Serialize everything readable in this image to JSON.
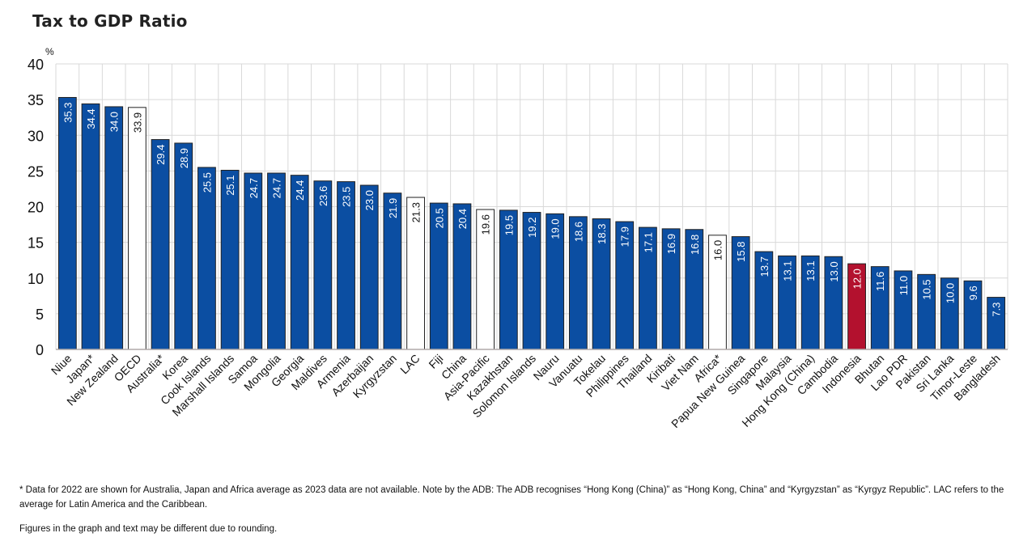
{
  "title": "Tax to GDP Ratio",
  "notes": [
    "* Data for 2022 are shown for Australia, Japan and Africa average as 2023 data are not available. Note by the ADB: The ADB recognises “Hong Kong (China)” as “Hong Kong, China” and “Kyrgyzstan” as “Kyrgyz Republic”. LAC refers to the average for Latin America and the Caribbean.",
    "Figures in the graph and text may be different due to rounding."
  ],
  "colors": {
    "country": "#0b4ea2",
    "average": "#ffffff",
    "highlight": "#b3112e",
    "grid": "#d9d9d9"
  },
  "chart_data": {
    "type": "bar",
    "title": "Tax to GDP Ratio",
    "xlabel": "",
    "ylabel": "%",
    "ylim": [
      0,
      40
    ],
    "yticks": [
      0,
      5,
      10,
      15,
      20,
      25,
      30,
      35,
      40
    ],
    "grid": true,
    "legend": "none",
    "categories": [
      "Niue",
      "Japan*",
      "New Zealand",
      "OECD",
      "Australia*",
      "Korea",
      "Cook Islands",
      "Marshall Islands",
      "Samoa",
      "Mongolia",
      "Georgia",
      "Maldives",
      "Armenia",
      "Azerbaijan",
      "Kyrgyzstan",
      "LAC",
      "Fiji",
      "China",
      "Asia-Pacific",
      "Kazakhstan",
      "Solomon Islands",
      "Nauru",
      "Vanuatu",
      "Tokelau",
      "Philippines",
      "Thailand",
      "Kiribati",
      "Viet Nam",
      "Africa*",
      "Papua New Guinea",
      "Singapore",
      "Malaysia",
      "Hong Kong (China)",
      "Cambodia",
      "Indonesia",
      "Bhutan",
      "Lao PDR",
      "Pakistan",
      "Sri Lanka",
      "Timor-Leste",
      "Bangladesh"
    ],
    "values": [
      35.3,
      34.4,
      34.0,
      33.9,
      29.4,
      28.9,
      25.5,
      25.1,
      24.7,
      24.7,
      24.4,
      23.6,
      23.5,
      23.0,
      21.9,
      21.3,
      20.5,
      20.4,
      19.6,
      19.5,
      19.2,
      19.0,
      18.6,
      18.3,
      17.9,
      17.1,
      16.9,
      16.8,
      16.0,
      15.8,
      13.7,
      13.1,
      13.1,
      13.0,
      12.0,
      11.6,
      11.0,
      10.5,
      10.0,
      9.6,
      7.3
    ],
    "labels": [
      "35.3",
      "34.4",
      "34.0",
      "33.9",
      "29.4",
      "28.9",
      "25.5",
      "25.1",
      "24.7",
      "24.7",
      "24.4",
      "23.6",
      "23.5",
      "23.0",
      "21.9",
      "21.3",
      "20.5",
      "20.4",
      "19.6",
      "19.5",
      "19.2",
      "19.0",
      "18.6",
      "18.3",
      "17.9",
      "17.1",
      "16.9",
      "16.8",
      "16.0",
      "15.8",
      "13.7",
      "13.1",
      "13.1",
      "13.0",
      "12.0",
      "11.6",
      "11.0",
      "10.5",
      "10.0",
      "9.6",
      "7.3"
    ],
    "kinds": [
      "country",
      "country",
      "country",
      "average",
      "country",
      "country",
      "country",
      "country",
      "country",
      "country",
      "country",
      "country",
      "country",
      "country",
      "country",
      "average",
      "country",
      "country",
      "average",
      "country",
      "country",
      "country",
      "country",
      "country",
      "country",
      "country",
      "country",
      "country",
      "average",
      "country",
      "country",
      "country",
      "country",
      "country",
      "highlight",
      "country",
      "country",
      "country",
      "country",
      "country",
      "country"
    ]
  }
}
